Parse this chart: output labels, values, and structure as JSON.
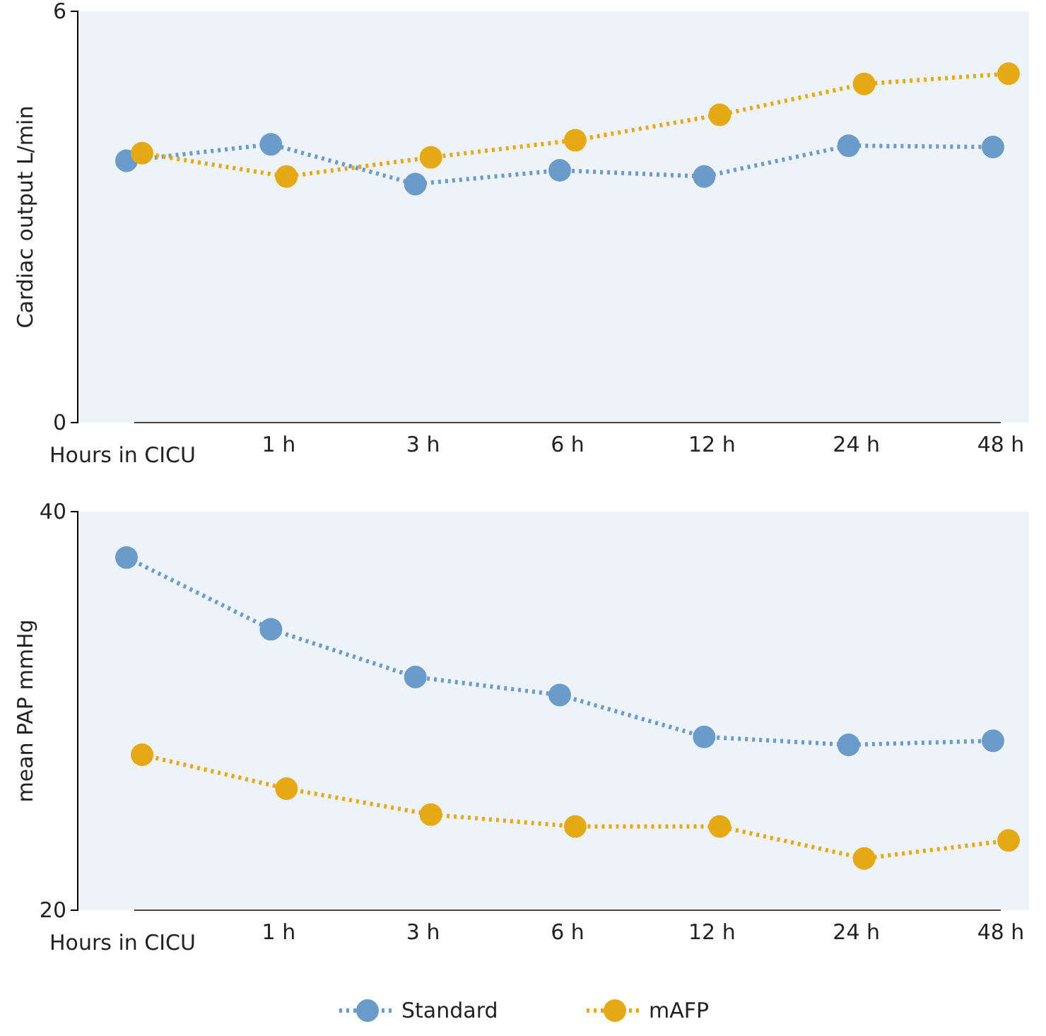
{
  "chart_data": [
    {
      "type": "line",
      "xlabel": "Hours in CICU",
      "ylabel": "Cardiac output L/min",
      "categories": [
        null,
        "1 h",
        "3 h",
        "6 h",
        "12 h",
        "24 h",
        "48 h"
      ],
      "ylim": [
        0,
        6
      ],
      "yticks": [
        0,
        6
      ],
      "marker": "circle",
      "line_style": "dotted",
      "series": [
        {
          "color": "#6b9bc8",
          "values": [
            3.82,
            4.06,
            3.48,
            3.68,
            3.59,
            4.04,
            4.02
          ]
        },
        {
          "color": "#e5a916",
          "values": [
            3.93,
            3.59,
            3.87,
            4.12,
            4.49,
            4.94,
            5.09
          ]
        }
      ]
    },
    {
      "type": "line",
      "xlabel": "Hours in CICU",
      "ylabel": "mean PAP mmHg",
      "categories": [
        null,
        "1 h",
        "3 h",
        "6 h",
        "12 h",
        "24 h",
        "48 h"
      ],
      "ylim": [
        20,
        40
      ],
      "yticks": [
        20,
        40
      ],
      "marker": "circle",
      "line_style": "dotted",
      "legend": "bottom",
      "series": [
        {
          "name": "Standard",
          "color": "#6b9bc8",
          "values": [
            37.7,
            34.1,
            31.7,
            30.8,
            28.7,
            28.3,
            28.5
          ]
        },
        {
          "name": "mAFP",
          "color": "#e5a916",
          "values": [
            27.8,
            26.1,
            24.8,
            24.2,
            24.2,
            22.6,
            23.5
          ]
        }
      ]
    }
  ]
}
